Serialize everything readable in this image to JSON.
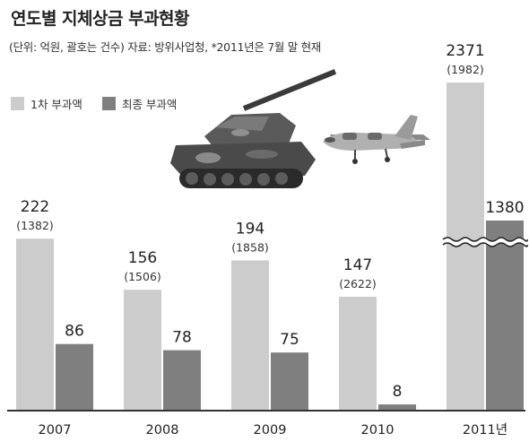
{
  "title": "연도별 지체상금 부과현황",
  "subtitle": "(단위: 억원, 괄호는 건수) 자료: 방위사업청, *2011년은 7월 말 현재",
  "legend": [
    {
      "label": "1차 부과액",
      "color": "#cccccc"
    },
    {
      "label": "최종 부과액",
      "color": "#7f7f7f"
    }
  ],
  "chart_data": {
    "type": "bar",
    "categories": [
      "2007",
      "2008",
      "2009",
      "2010",
      "2011년"
    ],
    "series": [
      {
        "name": "1차 부과액",
        "values": [
          222,
          156,
          194,
          147,
          2371
        ],
        "counts": [
          "(1382)",
          "(1506)",
          "(1858)",
          "(2622)",
          "(1982)"
        ],
        "color": "#cccccc"
      },
      {
        "name": "최종 부과액",
        "values": [
          86,
          78,
          75,
          8,
          1380
        ],
        "color": "#7f7f7f"
      }
    ],
    "axis_break": {
      "category": "2011년",
      "note": "bars broken with wavy line"
    },
    "ylabel": "",
    "xlabel": ""
  }
}
